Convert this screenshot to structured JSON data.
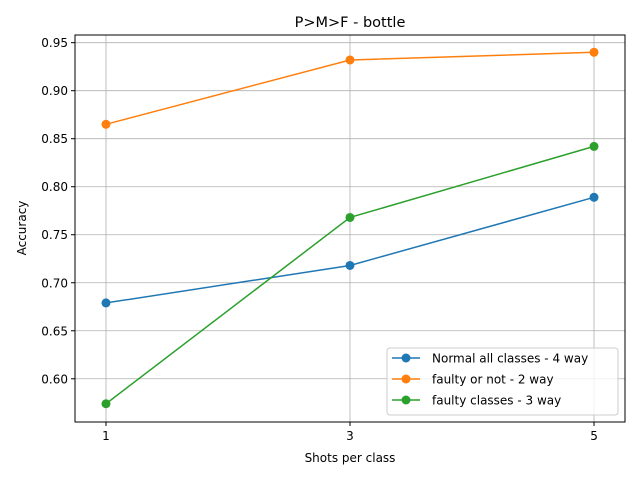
{
  "chart_data": {
    "type": "line",
    "title": "P>M>F - bottle",
    "xlabel": "Shots per class",
    "ylabel": "Accuracy",
    "x": [
      1,
      3,
      5
    ],
    "xticks": [
      "1",
      "3",
      "5"
    ],
    "yticks": [
      "0.60",
      "0.65",
      "0.70",
      "0.75",
      "0.80",
      "0.85",
      "0.90",
      "0.95"
    ],
    "xlim": [
      0.746,
      5.254
    ],
    "ylim": [
      0.555,
      0.958
    ],
    "grid": true,
    "legend_position": "lower-right",
    "series": [
      {
        "name": "Normal all classes - 4 way",
        "color": "#1f77b4",
        "values": [
          0.679,
          0.718,
          0.789
        ]
      },
      {
        "name": "faulty or not - 2 way",
        "color": "#ff7f0e",
        "values": [
          0.865,
          0.932,
          0.94
        ]
      },
      {
        "name": "faulty classes - 3 way",
        "color": "#2ca02c",
        "values": [
          0.574,
          0.768,
          0.842
        ]
      }
    ]
  }
}
